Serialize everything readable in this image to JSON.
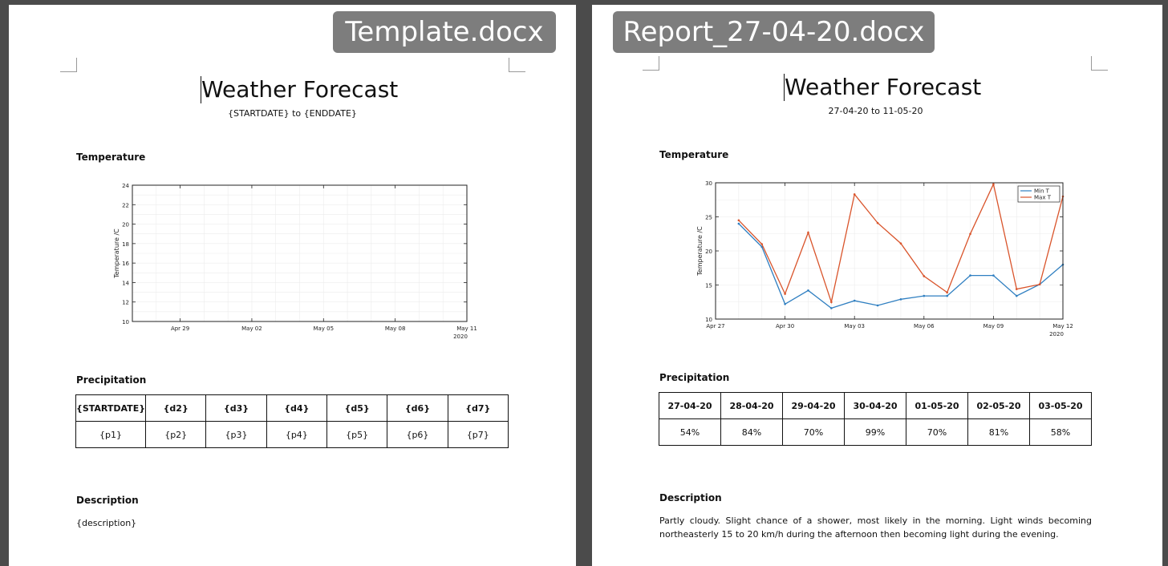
{
  "left_doc": {
    "filename": "Template.docx",
    "title": "Weather Forecast",
    "subtitle": "{STARTDATE} to {ENDDATE}",
    "temperature_heading": "Temperature",
    "precipitation_heading": "Precipitation",
    "description_heading": "Description",
    "description": "{description}",
    "precip_headers": [
      "{STARTDATE}",
      "{d2}",
      "{d3}",
      "{d4}",
      "{d5}",
      "{d6}",
      "{d7}"
    ],
    "precip_values": [
      "{p1}",
      "{p2}",
      "{p3}",
      "{p4}",
      "{p5}",
      "{p6}",
      "{p7}"
    ]
  },
  "right_doc": {
    "filename": "Report_27-04-20.docx",
    "title": "Weather Forecast",
    "subtitle": "27-04-20 to 11-05-20",
    "temperature_heading": "Temperature",
    "precipitation_heading": "Precipitation",
    "description_heading": "Description",
    "description": "Partly cloudy. Slight chance of a shower, most likely in the morning. Light winds becoming northeasterly 15 to 20 km/h during the afternoon then becoming light during the evening.",
    "precip_headers": [
      "27-04-20",
      "28-04-20",
      "29-04-20",
      "30-04-20",
      "01-05-20",
      "02-05-20",
      "03-05-20"
    ],
    "precip_values": [
      "54%",
      "84%",
      "70%",
      "99%",
      "70%",
      "81%",
      "58%"
    ]
  },
  "colors": {
    "min_series": "#2f7fc1",
    "max_series": "#d9542b"
  },
  "chart_data": [
    {
      "type": "line",
      "ylabel": "Temperature /C",
      "ylim": [
        10,
        24
      ],
      "yticks": [
        10,
        12,
        14,
        16,
        18,
        20,
        22,
        24
      ],
      "xlim": [
        "2020-04-27",
        "2020-05-11"
      ],
      "xticks": [
        {
          "date": "2020-04-29",
          "label": "Apr 29"
        },
        {
          "date": "2020-05-02",
          "label": "May 02"
        },
        {
          "date": "2020-05-05",
          "label": "May 05"
        },
        {
          "date": "2020-05-08",
          "label": "May 08"
        },
        {
          "date": "2020-05-11",
          "label": "May 11"
        }
      ],
      "year_label": "2020",
      "grid": true,
      "series": []
    },
    {
      "type": "line",
      "ylabel": "Temperature /C",
      "ylim": [
        10,
        30
      ],
      "yticks": [
        10,
        15,
        20,
        25,
        30
      ],
      "xlim": [
        "2020-04-27",
        "2020-05-12"
      ],
      "xticks": [
        {
          "date": "2020-04-27",
          "label": "Apr 27"
        },
        {
          "date": "2020-04-30",
          "label": "Apr 30"
        },
        {
          "date": "2020-05-03",
          "label": "May 03"
        },
        {
          "date": "2020-05-06",
          "label": "May 06"
        },
        {
          "date": "2020-05-09",
          "label": "May 09"
        },
        {
          "date": "2020-05-12",
          "label": "May 12"
        }
      ],
      "year_label": "2020",
      "grid": true,
      "legend": "top-right",
      "x": [
        "2020-04-28",
        "2020-04-29",
        "2020-04-30",
        "2020-05-01",
        "2020-05-02",
        "2020-05-03",
        "2020-05-04",
        "2020-05-05",
        "2020-05-06",
        "2020-05-07",
        "2020-05-08",
        "2020-05-09",
        "2020-05-10",
        "2020-05-11",
        "2020-05-12"
      ],
      "series": [
        {
          "name": "Min T",
          "values": [
            24.0,
            20.6,
            12.2,
            14.2,
            11.6,
            12.7,
            12.0,
            12.9,
            13.4,
            13.4,
            16.4,
            16.4,
            13.4,
            15.1,
            18.0
          ]
        },
        {
          "name": "Max T",
          "values": [
            24.5,
            21.0,
            13.7,
            22.7,
            12.5,
            28.3,
            24.1,
            21.1,
            16.3,
            13.9,
            22.5,
            29.8,
            14.4,
            15.1,
            28.0
          ]
        }
      ]
    }
  ]
}
